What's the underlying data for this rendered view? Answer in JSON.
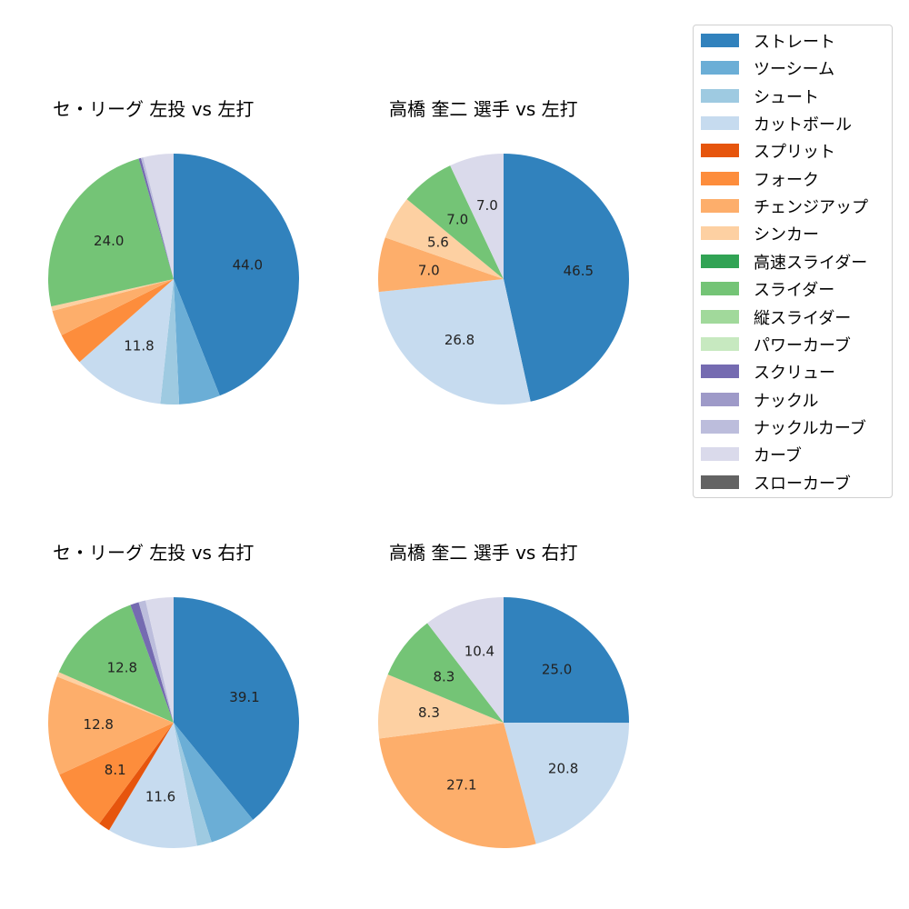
{
  "legend": {
    "items": [
      {
        "label": "ストレート",
        "color": "#3182bd"
      },
      {
        "label": "ツーシーム",
        "color": "#6baed6"
      },
      {
        "label": "シュート",
        "color": "#9ecae1"
      },
      {
        "label": "カットボール",
        "color": "#c6dbef"
      },
      {
        "label": "スプリット",
        "color": "#e6550d"
      },
      {
        "label": "フォーク",
        "color": "#fd8d3c"
      },
      {
        "label": "チェンジアップ",
        "color": "#fdae6b"
      },
      {
        "label": "シンカー",
        "color": "#fdd0a2"
      },
      {
        "label": "高速スライダー",
        "color": "#31a354"
      },
      {
        "label": "スライダー",
        "color": "#74c476"
      },
      {
        "label": "縦スライダー",
        "color": "#a1d99b"
      },
      {
        "label": "パワーカーブ",
        "color": "#c7e9c0"
      },
      {
        "label": "スクリュー",
        "color": "#756bb1"
      },
      {
        "label": "ナックル",
        "color": "#9e9ac8"
      },
      {
        "label": "ナックルカーブ",
        "color": "#bcbddc"
      },
      {
        "label": "カーブ",
        "color": "#dadaeb"
      },
      {
        "label": "スローカーブ",
        "color": "#636363"
      }
    ]
  },
  "chart_data": [
    {
      "type": "pie",
      "title": "セ・リーグ 左投 vs 左打",
      "categories": [
        "ストレート",
        "ツーシーム",
        "シュート",
        "カットボール",
        "フォーク",
        "チェンジアップ",
        "シンカー",
        "スライダー",
        "スクリュー",
        "ナックルカーブ",
        "カーブ"
      ],
      "values": [
        44.0,
        5.3,
        2.4,
        11.8,
        4.1,
        3.3,
        0.6,
        24.0,
        0.3,
        0.3,
        3.9
      ],
      "labels": [
        "44.0",
        "",
        "",
        "11.8",
        "",
        "",
        "",
        "24.0",
        "",
        "",
        ""
      ]
    },
    {
      "type": "pie",
      "title": "高橋 奎二 選手 vs 左打",
      "categories": [
        "ストレート",
        "カットボール",
        "チェンジアップ",
        "シンカー",
        "スライダー",
        "カーブ"
      ],
      "values": [
        46.5,
        26.8,
        7.0,
        5.6,
        7.0,
        7.0
      ],
      "labels": [
        "46.5",
        "26.8",
        "7.0",
        "5.6",
        "7.0",
        "7.0"
      ]
    },
    {
      "type": "pie",
      "title": "セ・リーグ 左投 vs 右打",
      "categories": [
        "ストレート",
        "ツーシーム",
        "シュート",
        "カットボール",
        "スプリット",
        "フォーク",
        "チェンジアップ",
        "シンカー",
        "スライダー",
        "スクリュー",
        "ナックルカーブ",
        "カーブ"
      ],
      "values": [
        39.1,
        6.0,
        1.9,
        11.6,
        1.5,
        8.1,
        12.8,
        0.6,
        12.8,
        1.1,
        0.9,
        3.6
      ],
      "labels": [
        "39.1",
        "",
        "",
        "11.6",
        "",
        "8.1",
        "12.8",
        "",
        "12.8",
        "",
        "",
        ""
      ]
    },
    {
      "type": "pie",
      "title": "高橋 奎二 選手 vs 右打",
      "categories": [
        "ストレート",
        "カットボール",
        "チェンジアップ",
        "シンカー",
        "スライダー",
        "カーブ"
      ],
      "values": [
        25.0,
        20.8,
        27.1,
        8.3,
        8.3,
        10.4
      ],
      "labels": [
        "25.0",
        "20.8",
        "27.1",
        "8.3",
        "8.3",
        "10.4"
      ]
    }
  ]
}
